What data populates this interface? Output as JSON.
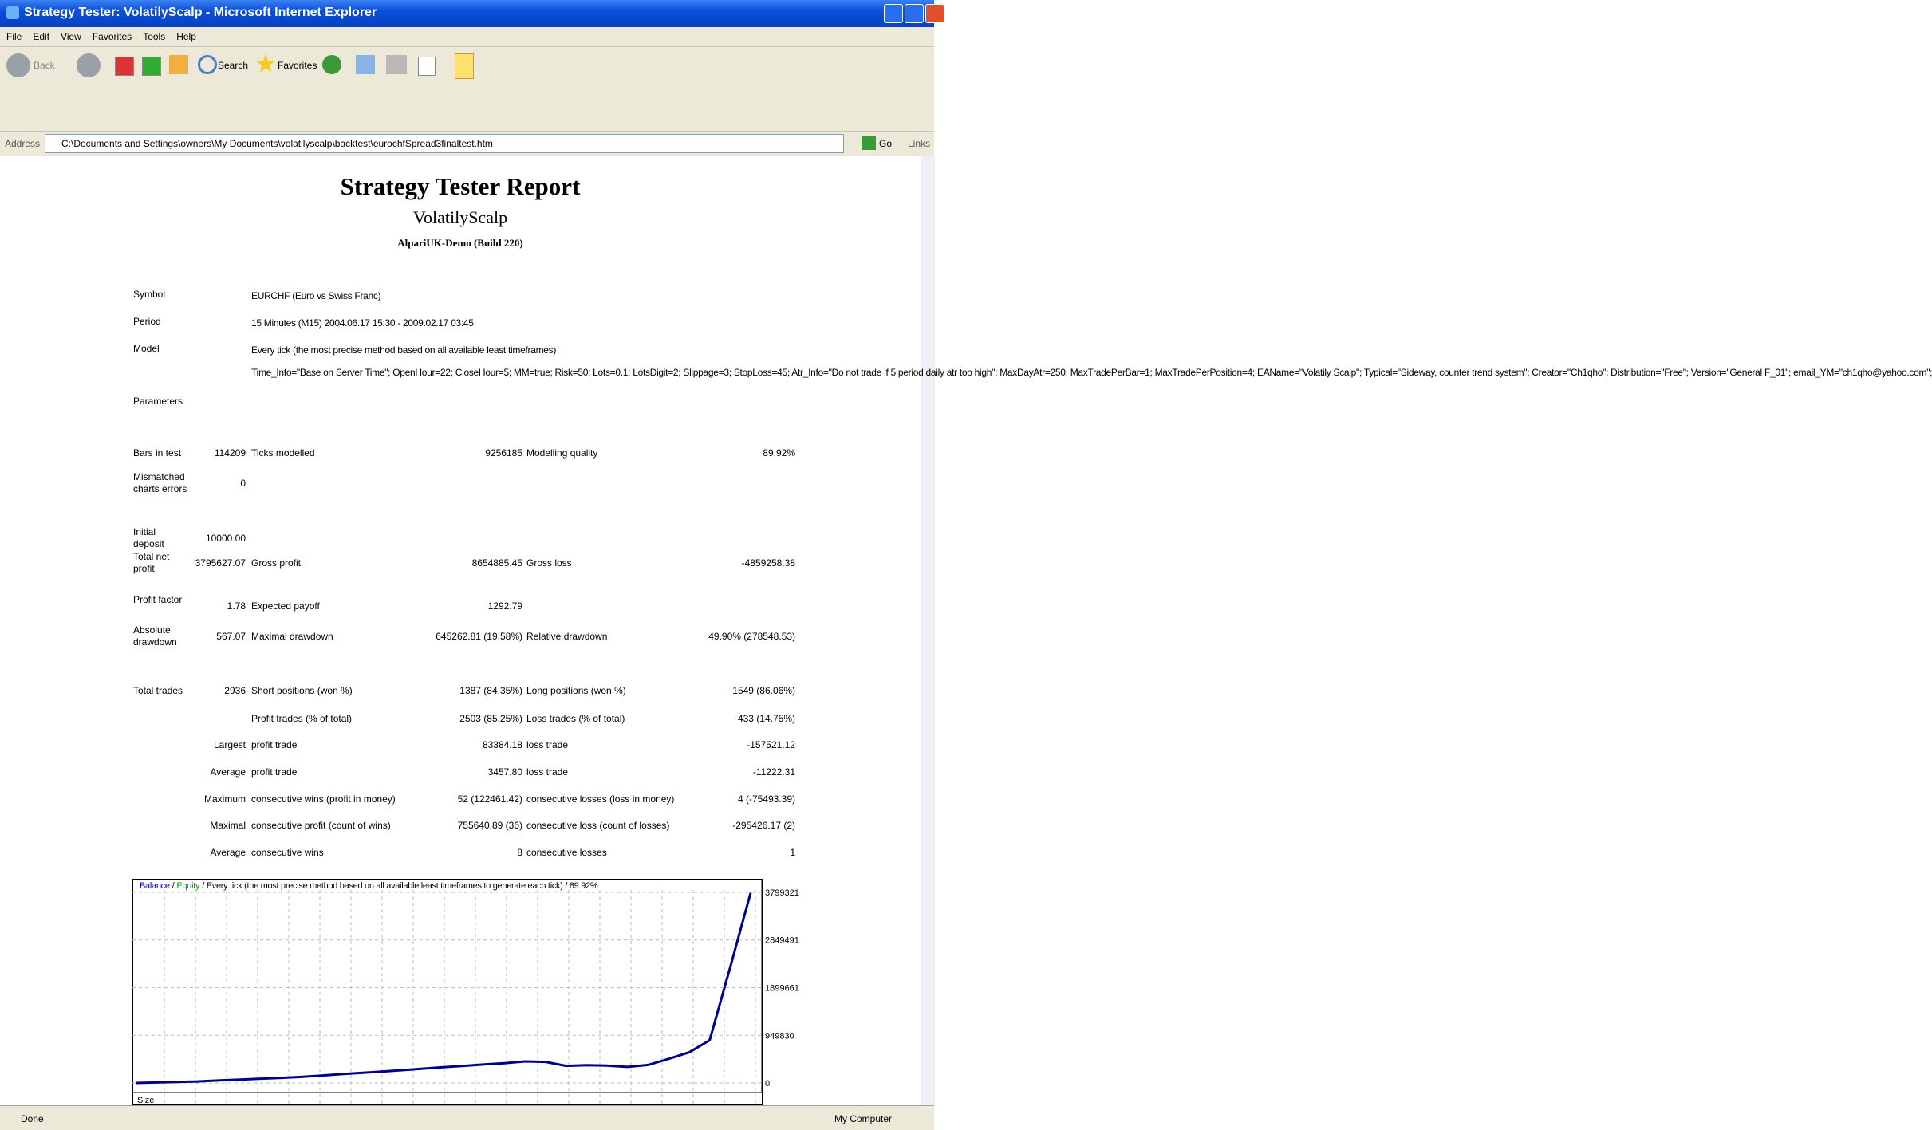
{
  "window": {
    "title": "Strategy Tester: VolatilyScalp - Microsoft Internet Explorer"
  },
  "menu": [
    "File",
    "Edit",
    "View",
    "Favorites",
    "Tools",
    "Help"
  ],
  "toolbar": {
    "back": "Back",
    "search": "Search",
    "favorites": "Favorites"
  },
  "address": {
    "label": "Address",
    "url": "C:\\Documents and Settings\\owners\\My Documents\\volatilyscalp\\backtest\\eurochfSpread3finaltest.htm",
    "go": "Go",
    "links": "Links"
  },
  "report": {
    "title": "Strategy Tester Report",
    "subtitle": "VolatilyScalp",
    "server": "AlpariUK-Demo (Build 220)"
  },
  "info": [
    {
      "label": "Symbol",
      "value": "EURCHF (Euro vs Swiss Franc)"
    },
    {
      "label": "Period",
      "value": "15 Minutes (M15) 2004.06.17 15:30 - 2009.02.17 03:45"
    },
    {
      "label": "Model",
      "value": "Every tick (the most precise method based on all available least timeframes)"
    },
    {
      "label": "Parameters",
      "value": "Time_Info=\"Base on Server Time\"; OpenHour=22; CloseHour=5; MM=true; Risk=50; Lots=0.1; LotsDigit=2; Slippage=3; StopLoss=45; Atr_Info=\"Do not trade if 5 period daily atr too high\"; MaxDayAtr=250; MaxTradePerBar=1; MaxTradePerPosition=4; EAName=\"Volatily Scalp\"; Typical=\"Sideway, counter trend system\"; Creator=\"Ch1qho\"; Distribution=\"Free\"; Version=\"General F_01\"; email_YM=\"ch1qho@yahoo.com\";"
    }
  ],
  "stats": [
    {
      "label1": "Bars in test",
      "value1": "114209",
      "label2": "Ticks modelled",
      "value2": "9256185",
      "label3": "Modelling quality",
      "value3": "89.92%"
    },
    {
      "label1": "Mismatched charts errors",
      "value1": "0"
    },
    {
      "label1": "Initial deposit",
      "value1": "10000.00"
    },
    {
      "label1": "Total net profit",
      "value1": "3795627.07",
      "label2": "Gross profit",
      "value2": "8654885.45",
      "label3": "Gross loss",
      "value3": "-4859258.38"
    },
    {
      "label1": "Profit factor",
      "value1": "1.78",
      "label2": "Expected payoff",
      "value2": "1292.79"
    },
    {
      "label1": "Absolute drawdown",
      "value1": "567.07",
      "label2": "Maximal drawdown",
      "value2": "645262.81 (19.58%)",
      "label3": "Relative drawdown",
      "value3": "49.90% (278548.53)"
    },
    {
      "label1": "Total trades",
      "value1": "2936",
      "label2": "Short positions (won %)",
      "value2": "1387 (84.35%)",
      "label3": "Long positions (won %)",
      "value3": "1549 (86.06%)"
    },
    {
      "label2": "Profit trades (% of total)",
      "value2": "2503 (85.25%)",
      "label3": "Loss trades (% of total)",
      "value3": "433 (14.75%)"
    },
    {
      "value1": "Largest",
      "label2": "profit trade",
      "value2": "83384.18",
      "label3": "loss trade",
      "value3": "-157521.12"
    },
    {
      "value1": "Average",
      "label2": "profit trade",
      "value2": "3457.80",
      "label3": "loss trade",
      "value3": "-11222.31"
    },
    {
      "value1": "Maximum",
      "label2": "consecutive wins (profit in money)",
      "value2": "52 (122461.42)",
      "label3": "consecutive losses (loss in money)",
      "value3": "4 (-75493.39)"
    },
    {
      "value1": "Maximal",
      "label2": "consecutive profit (count of wins)",
      "value2": "755640.89 (36)",
      "label3": "consecutive loss (count of losses)",
      "value3": "-295426.17 (2)"
    },
    {
      "value1": "Average",
      "label2": "consecutive wins",
      "value2": "8",
      "label3": "consecutive losses",
      "value3": "1"
    }
  ],
  "chart": {
    "type": "line",
    "balance_label": "Balance",
    "separator": "/",
    "equity_label": "Equity",
    "caption": "/ Every tick (the most precise method based on all available least timeframes to generate each tick) / 89.92%",
    "ylim": [
      0,
      3799321
    ],
    "yticks": [
      3799321,
      2849491,
      1899661,
      949830,
      0
    ],
    "color": "#00008b",
    "values": [
      0,
      10000,
      20000,
      30000,
      50000,
      65000,
      85000,
      100000,
      120000,
      145000,
      175000,
      200000,
      225000,
      255000,
      285000,
      315000,
      340000,
      370000,
      395000,
      430000,
      420000,
      340000,
      355000,
      345000,
      320000,
      360000,
      480000,
      610000,
      850000,
      2300000,
      3790000
    ],
    "size_label": "Size"
  },
  "status": {
    "text": "Done",
    "zone": "My Computer"
  }
}
